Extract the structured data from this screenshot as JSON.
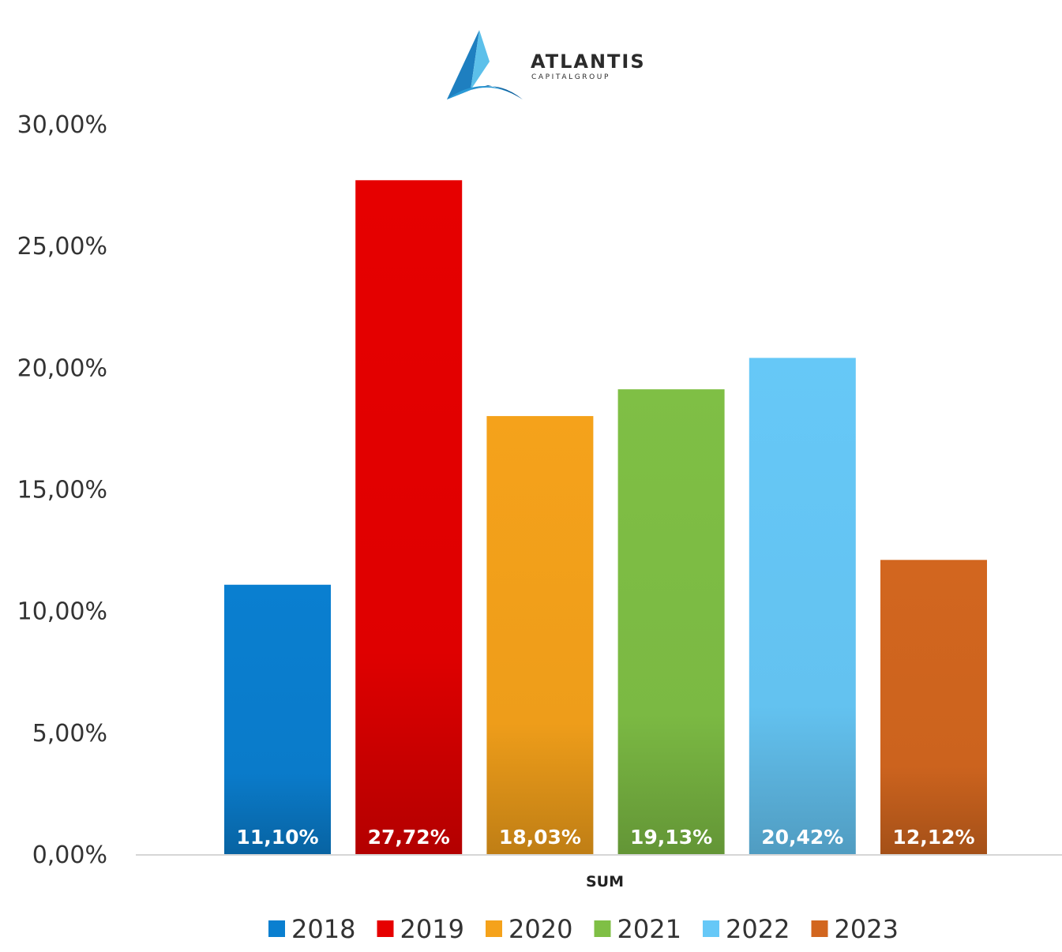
{
  "logo": {
    "name": "ATLANTIS",
    "sub": "CAPITALGROUP"
  },
  "chart_data": {
    "type": "bar",
    "title": "",
    "xlabel": "",
    "ylabel": "",
    "categories": [
      "SUM"
    ],
    "series": [
      {
        "name": "2018",
        "values": [
          11.1
        ],
        "label": "11,10%",
        "color": "#0a7fd0"
      },
      {
        "name": "2019",
        "values": [
          27.72
        ],
        "label": "27,72%",
        "color": "#e60000"
      },
      {
        "name": "2020",
        "values": [
          18.03
        ],
        "label": "18,03%",
        "color": "#f5a21b"
      },
      {
        "name": "2021",
        "values": [
          19.13
        ],
        "label": "19,13%",
        "color": "#7fbf45"
      },
      {
        "name": "2022",
        "values": [
          20.42
        ],
        "label": "20,42%",
        "color": "#66c8f7"
      },
      {
        "name": "2023",
        "values": [
          12.12
        ],
        "label": "12,12%",
        "color": "#d2661f"
      }
    ],
    "yticks": [
      {
        "value": 0,
        "label": "0,00%"
      },
      {
        "value": 5,
        "label": "5,00%"
      },
      {
        "value": 10,
        "label": "10,00%"
      },
      {
        "value": 15,
        "label": "15,00%"
      },
      {
        "value": 20,
        "label": "20,00%"
      },
      {
        "value": 25,
        "label": "25,00%"
      },
      {
        "value": 30,
        "label": "30,00%"
      }
    ],
    "ylim": [
      0,
      30
    ],
    "legend": "bottom",
    "grid": false
  }
}
